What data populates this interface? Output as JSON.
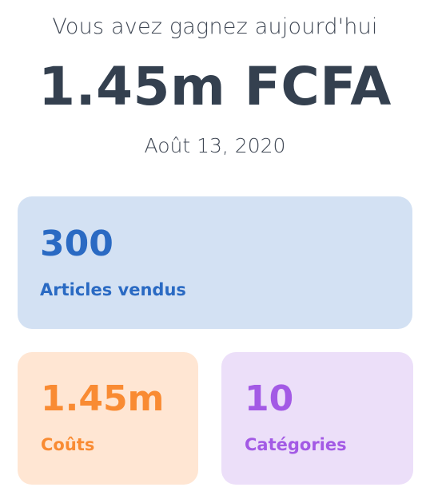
{
  "header": {
    "subtitle": "Vous avez gagnez aujourd'hui",
    "amount": "1.45m FCFA",
    "date": "Août 13, 2020"
  },
  "stats": {
    "articles": {
      "value": "300",
      "label": "Articles vendus",
      "color": "#2a6ac3",
      "background": "#d3e1f3"
    },
    "couts": {
      "value": "1.45m",
      "label": "Coûts",
      "color": "#f98b33",
      "background": "#ffe6d3"
    },
    "categories": {
      "value": "10",
      "label": "Catégories",
      "color": "#a35ae5",
      "background": "#ecdff9"
    }
  },
  "colors": {
    "text_primary": "#34404f",
    "text_secondary": "#3f4754"
  }
}
